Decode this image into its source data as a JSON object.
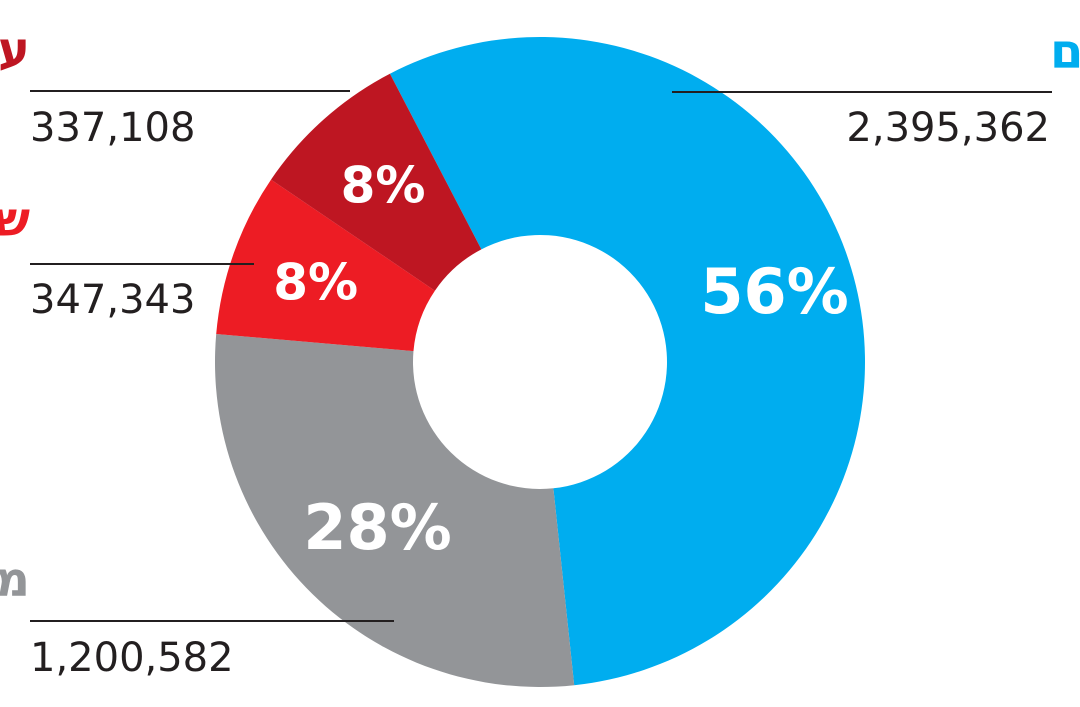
{
  "chart_data": {
    "type": "pie",
    "title": "",
    "categories": [
      "ימין-חרדים",
      "מרכז",
      "שמאל",
      "ערבים"
    ],
    "series": [
      {
        "values": [
          2395362,
          1200582,
          347343,
          337108
        ],
        "percent_labels": [
          "56%",
          "28%",
          "8%",
          "8%"
        ]
      }
    ],
    "value_labels": [
      "2,395,362",
      "1,200,582",
      "347,343",
      "337,108"
    ],
    "colors": [
      "#00adef",
      "#939598",
      "#ed1c24",
      "#be1622"
    ],
    "donut": true,
    "legend": "labels beside slices"
  }
}
